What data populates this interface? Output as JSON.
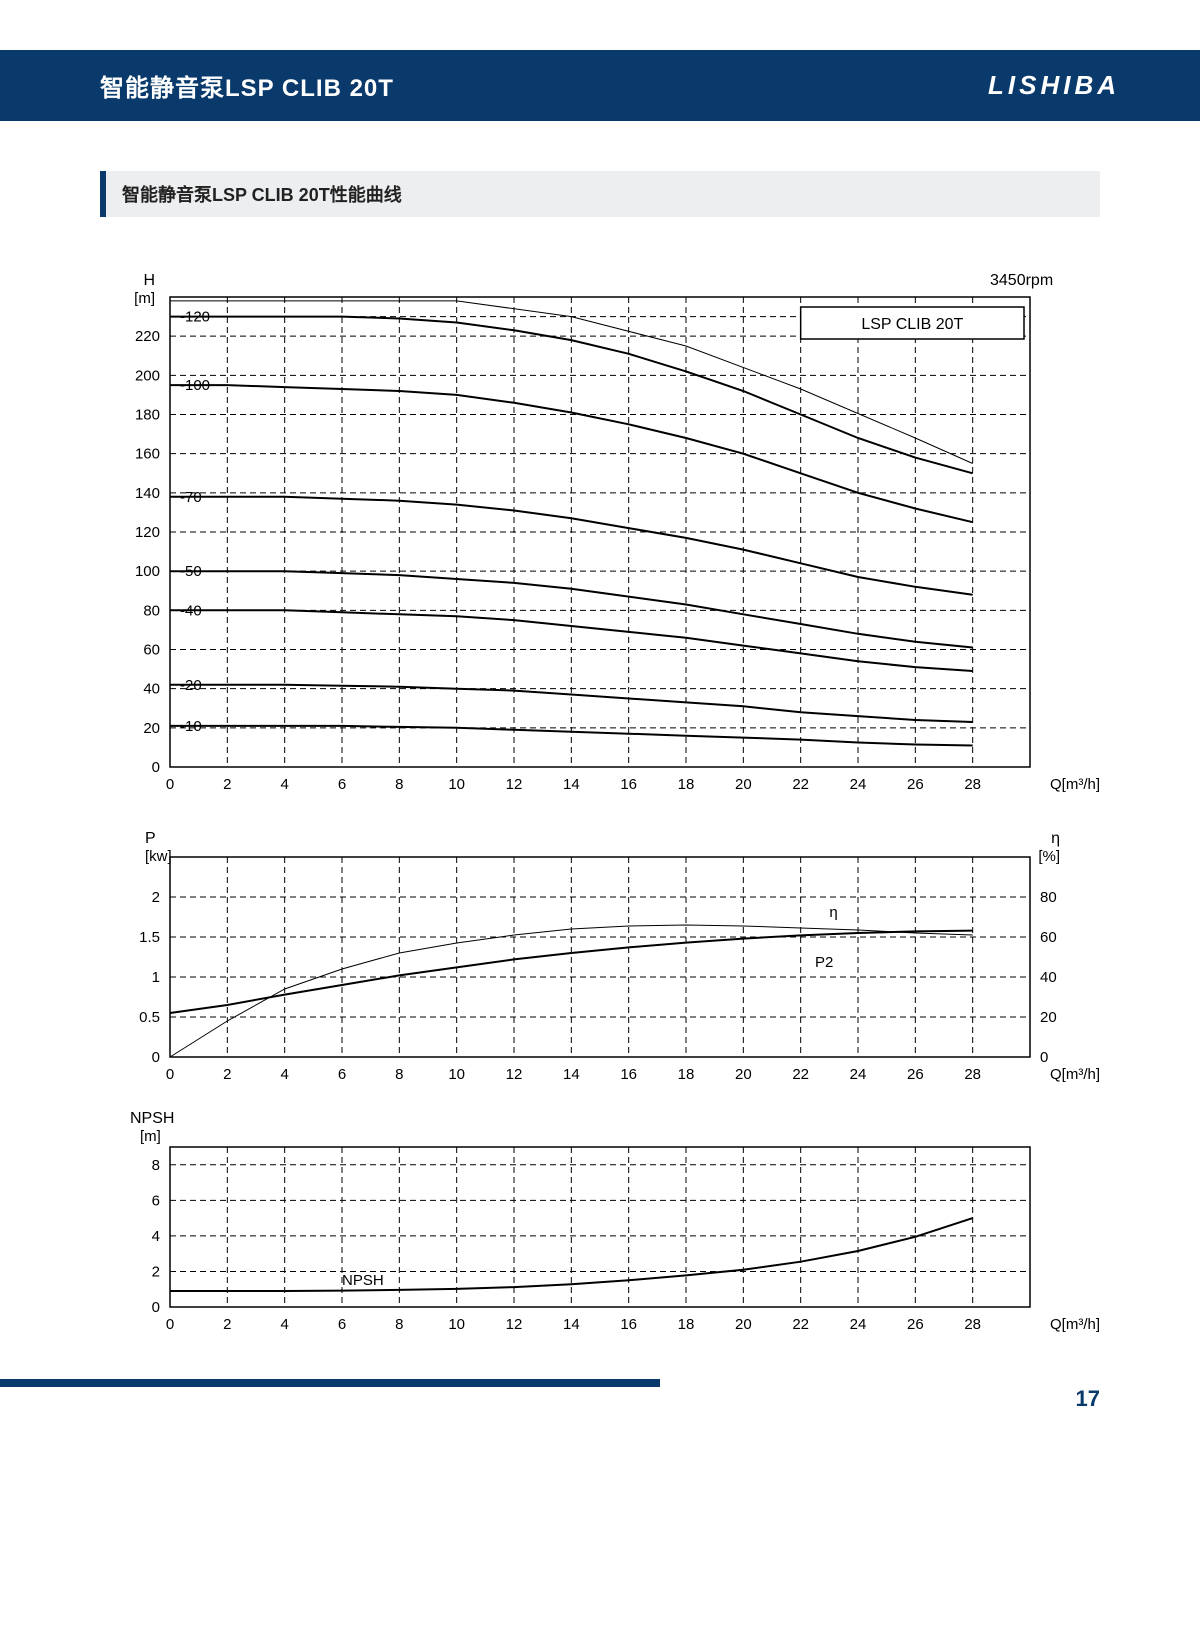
{
  "header": {
    "title": "智能静音泵LSP CLIB 20T",
    "brand": "LISHIBA"
  },
  "section_title": "智能静音泵LSP CLIB 20T性能曲线",
  "page_number": "17",
  "colors": {
    "brand_blue": "#0a3a6b",
    "bg_gray": "#edeef0",
    "line": "#000000",
    "page_bg": "#ffffff"
  },
  "annotation": {
    "rpm": "3450rpm",
    "model_box": "LSP CLIB 20T"
  },
  "chart_head": {
    "title_y": "H",
    "unit_y": "[m]",
    "xlabel": "Q[m³/h]",
    "x": {
      "min": 0,
      "max": 30,
      "ticks": [
        0,
        2,
        4,
        6,
        8,
        10,
        12,
        14,
        16,
        18,
        20,
        22,
        24,
        26,
        28
      ]
    },
    "y": {
      "min": 0,
      "max": 240,
      "ticks": [
        0,
        20,
        40,
        60,
        80,
        100,
        120,
        140,
        160,
        180,
        200,
        220
      ]
    },
    "h_grid_extra": [
      230
    ],
    "curve_labels": [
      "-120",
      "-100",
      "-70",
      "-50",
      "-40",
      "-20",
      "-10"
    ],
    "curves": [
      {
        "label": "-120",
        "pts": [
          [
            0,
            230
          ],
          [
            2,
            230
          ],
          [
            4,
            230
          ],
          [
            6,
            230
          ],
          [
            8,
            229
          ],
          [
            10,
            227
          ],
          [
            12,
            223
          ],
          [
            14,
            218
          ],
          [
            16,
            211
          ],
          [
            18,
            202
          ],
          [
            20,
            192
          ],
          [
            22,
            180
          ],
          [
            24,
            168
          ],
          [
            26,
            158
          ],
          [
            28,
            150
          ]
        ]
      },
      {
        "label": "-100",
        "pts": [
          [
            0,
            195
          ],
          [
            2,
            195
          ],
          [
            4,
            194
          ],
          [
            6,
            193
          ],
          [
            8,
            192
          ],
          [
            10,
            190
          ],
          [
            12,
            186
          ],
          [
            14,
            181
          ],
          [
            16,
            175
          ],
          [
            18,
            168
          ],
          [
            20,
            160
          ],
          [
            22,
            150
          ],
          [
            24,
            140
          ],
          [
            26,
            132
          ],
          [
            28,
            125
          ]
        ]
      },
      {
        "label": "-70",
        "pts": [
          [
            0,
            138
          ],
          [
            2,
            138
          ],
          [
            4,
            138
          ],
          [
            6,
            137
          ],
          [
            8,
            136
          ],
          [
            10,
            134
          ],
          [
            12,
            131
          ],
          [
            14,
            127
          ],
          [
            16,
            122
          ],
          [
            18,
            117
          ],
          [
            20,
            111
          ],
          [
            22,
            104
          ],
          [
            24,
            97
          ],
          [
            26,
            92
          ],
          [
            28,
            88
          ]
        ]
      },
      {
        "label": "-50",
        "pts": [
          [
            0,
            100
          ],
          [
            2,
            100
          ],
          [
            4,
            100
          ],
          [
            6,
            99
          ],
          [
            8,
            98
          ],
          [
            10,
            96
          ],
          [
            12,
            94
          ],
          [
            14,
            91
          ],
          [
            16,
            87
          ],
          [
            18,
            83
          ],
          [
            20,
            78
          ],
          [
            22,
            73
          ],
          [
            24,
            68
          ],
          [
            26,
            64
          ],
          [
            28,
            61
          ]
        ]
      },
      {
        "label": "-40",
        "pts": [
          [
            0,
            80
          ],
          [
            2,
            80
          ],
          [
            4,
            80
          ],
          [
            6,
            79
          ],
          [
            8,
            78
          ],
          [
            10,
            77
          ],
          [
            12,
            75
          ],
          [
            14,
            72
          ],
          [
            16,
            69
          ],
          [
            18,
            66
          ],
          [
            20,
            62
          ],
          [
            22,
            58
          ],
          [
            24,
            54
          ],
          [
            26,
            51
          ],
          [
            28,
            49
          ]
        ]
      },
      {
        "label": "-20",
        "pts": [
          [
            0,
            42
          ],
          [
            2,
            42
          ],
          [
            4,
            42
          ],
          [
            6,
            41.5
          ],
          [
            8,
            41
          ],
          [
            10,
            40
          ],
          [
            12,
            39
          ],
          [
            14,
            37
          ],
          [
            16,
            35
          ],
          [
            18,
            33
          ],
          [
            20,
            31
          ],
          [
            22,
            28
          ],
          [
            24,
            26
          ],
          [
            26,
            24
          ],
          [
            28,
            23
          ]
        ]
      },
      {
        "label": "-10",
        "pts": [
          [
            0,
            21
          ],
          [
            2,
            21
          ],
          [
            4,
            21
          ],
          [
            6,
            21
          ],
          [
            8,
            20.5
          ],
          [
            10,
            20
          ],
          [
            12,
            19
          ],
          [
            14,
            18
          ],
          [
            16,
            17
          ],
          [
            18,
            16
          ],
          [
            20,
            15
          ],
          [
            22,
            14
          ],
          [
            24,
            12.5
          ],
          [
            26,
            11.5
          ],
          [
            28,
            11
          ]
        ]
      }
    ],
    "guide_line": [
      [
        0,
        238
      ],
      [
        10,
        238
      ],
      [
        14,
        230
      ],
      [
        18,
        215
      ],
      [
        22,
        193
      ],
      [
        26,
        168
      ],
      [
        28,
        155
      ]
    ]
  },
  "chart_power": {
    "title_left": "P",
    "unit_left": "[kw]",
    "title_right": "η",
    "unit_right": "[%]",
    "xlabel": "Q[m³/h]",
    "x": {
      "min": 0,
      "max": 30,
      "ticks": [
        0,
        2,
        4,
        6,
        8,
        10,
        12,
        14,
        16,
        18,
        20,
        22,
        24,
        26,
        28
      ]
    },
    "y_left": {
      "min": 0,
      "max": 2.5,
      "ticks": [
        0,
        0.5,
        1,
        1.5,
        2
      ]
    },
    "y_right": {
      "min": 0,
      "max": 100,
      "ticks": [
        0,
        20,
        40,
        60,
        80
      ]
    },
    "eta_label": "η",
    "p2_label": "P2",
    "curves": {
      "eta": [
        [
          0,
          0
        ],
        [
          2,
          18
        ],
        [
          4,
          34
        ],
        [
          6,
          44
        ],
        [
          8,
          52
        ],
        [
          10,
          57
        ],
        [
          12,
          61
        ],
        [
          14,
          64
        ],
        [
          16,
          65.5
        ],
        [
          18,
          66
        ],
        [
          20,
          65.5
        ],
        [
          22,
          64.5
        ],
        [
          24,
          63.5
        ],
        [
          26,
          62
        ],
        [
          28,
          61
        ]
      ],
      "p2": [
        [
          0,
          0.55
        ],
        [
          2,
          0.65
        ],
        [
          4,
          0.78
        ],
        [
          6,
          0.9
        ],
        [
          8,
          1.02
        ],
        [
          10,
          1.12
        ],
        [
          12,
          1.22
        ],
        [
          14,
          1.3
        ],
        [
          16,
          1.37
        ],
        [
          18,
          1.43
        ],
        [
          20,
          1.48
        ],
        [
          22,
          1.52
        ],
        [
          24,
          1.55
        ],
        [
          26,
          1.57
        ],
        [
          28,
          1.58
        ]
      ]
    }
  },
  "chart_npsh": {
    "title_y": "NPSH",
    "unit_y": "[m]",
    "xlabel": "Q[m³/h]",
    "label": "NPSH",
    "x": {
      "min": 0,
      "max": 30,
      "ticks": [
        0,
        2,
        4,
        6,
        8,
        10,
        12,
        14,
        16,
        18,
        20,
        22,
        24,
        26,
        28
      ]
    },
    "y": {
      "min": 0,
      "max": 9,
      "ticks": [
        0,
        2,
        4,
        6,
        8
      ]
    },
    "curve": [
      [
        0,
        0.9
      ],
      [
        2,
        0.9
      ],
      [
        4,
        0.9
      ],
      [
        6,
        0.92
      ],
      [
        8,
        0.96
      ],
      [
        10,
        1.02
      ],
      [
        12,
        1.12
      ],
      [
        14,
        1.28
      ],
      [
        16,
        1.5
      ],
      [
        18,
        1.78
      ],
      [
        20,
        2.1
      ],
      [
        22,
        2.55
      ],
      [
        24,
        3.15
      ],
      [
        26,
        3.95
      ],
      [
        28,
        5.0
      ]
    ]
  }
}
